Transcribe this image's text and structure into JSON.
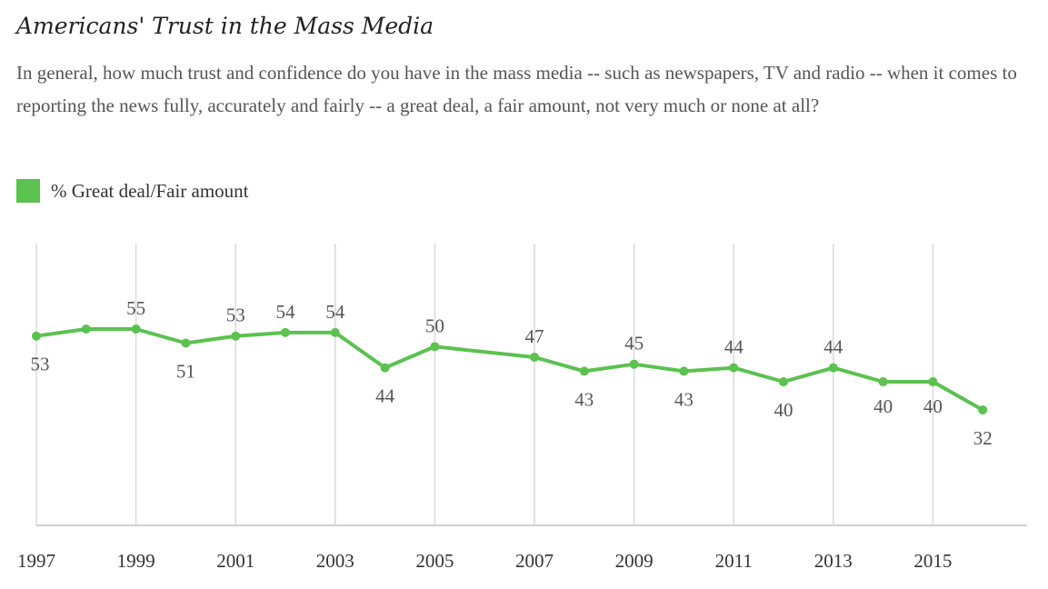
{
  "colors": {
    "series": "#5bc14f",
    "grid": "#d9d9d9",
    "axis": "#d0d0d0",
    "label": "#555555",
    "tick": "#333333"
  },
  "chart_data": {
    "type": "line",
    "title": "Americans' Trust in the Mass Media",
    "subtitle": "In general, how much trust and confidence do you have in the mass media -- such as newspapers, TV and radio -- when it comes to reporting the news fully, accurately and fairly -- a great deal, a fair amount, not very much or none at all?",
    "xlabel": "",
    "ylabel": "",
    "ylim": [
      0,
      75
    ],
    "x": [
      1997,
      1998,
      1999,
      2000,
      2001,
      2002,
      2003,
      2004,
      2005,
      2007,
      2008,
      2009,
      2010,
      2011,
      2012,
      2013,
      2014,
      2015,
      2016
    ],
    "series": [
      {
        "name": "% Great deal/Fair amount",
        "values": [
          53,
          55,
          55,
          51,
          53,
          54,
          54,
          44,
          50,
          47,
          43,
          45,
          43,
          44,
          40,
          44,
          40,
          40,
          32
        ],
        "labels": [
          "53",
          "",
          "55",
          "51",
          "53",
          "54",
          "54",
          "44",
          "50",
          "47",
          "43",
          "45",
          "43",
          "44",
          "40",
          "44",
          "40",
          "40",
          "32"
        ]
      }
    ],
    "xticks": [
      "1997",
      "1999",
      "2001",
      "2003",
      "2005",
      "2007",
      "2009",
      "2011",
      "2013",
      "2015"
    ],
    "legend": {
      "position": "top-left",
      "label": "% Great deal/Fair amount"
    },
    "grid": "vertical"
  }
}
